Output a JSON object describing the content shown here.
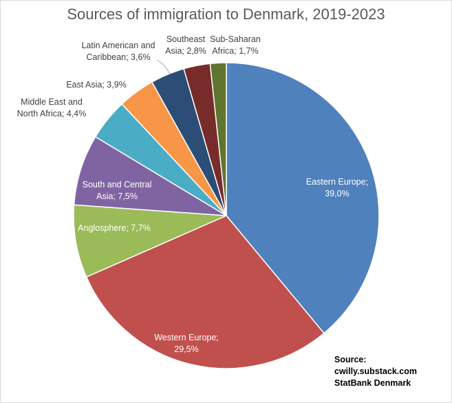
{
  "chart_data": {
    "type": "pie",
    "title": "Sources of immigration to Denmark, 2019-2023",
    "slices": [
      {
        "label": "Eastern Europe;",
        "value_text": "39,0%",
        "value": 39.0,
        "color": "#4f81bd"
      },
      {
        "label": "Western Europe;",
        "value_text": "29,5%",
        "value": 29.5,
        "color": "#c0504d"
      },
      {
        "label": "Anglosphere; 7,7%",
        "value": 7.7,
        "color": "#9bbb59"
      },
      {
        "label": "South and Central",
        "value_text": "Asia; 7,5%",
        "value": 7.5,
        "color": "#8064a2"
      },
      {
        "label": "Middle East and",
        "value_text": "North Africa; 4,4%",
        "value": 4.4,
        "color": "#4bacc6"
      },
      {
        "label": "East Asia; 3,9%",
        "value": 3.9,
        "color": "#f79646"
      },
      {
        "label": "Latin American and",
        "value_text": "Caribbean; 3,6%",
        "value": 3.6,
        "color": "#2c4d75"
      },
      {
        "label": "Southeast",
        "value_text": "Asia; 2,8%",
        "value": 2.8,
        "color": "#772c2a"
      },
      {
        "label": "Sub-Saharan",
        "value_text": "Africa; 1,7%",
        "value": 1.7,
        "color": "#5f7530"
      }
    ],
    "source": [
      "Source:",
      "cwilly.substack.com",
      "StatBank Denmark"
    ]
  }
}
